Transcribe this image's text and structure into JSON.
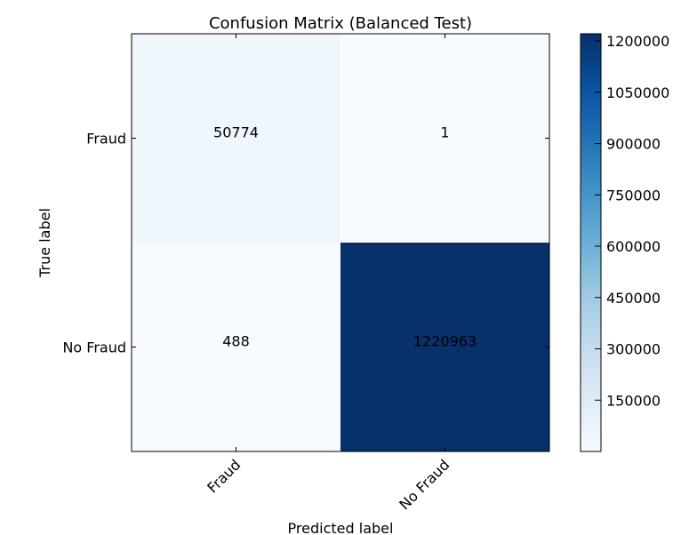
{
  "chart_data": {
    "type": "heatmap",
    "title": "Confusion Matrix (Balanced Test)",
    "xlabel": "Predicted label",
    "ylabel": "True label",
    "x_categories": [
      "Fraud",
      "No Fraud"
    ],
    "y_categories": [
      "Fraud",
      "No Fraud"
    ],
    "values": [
      [
        50774,
        1
      ],
      [
        488,
        1220963
      ]
    ],
    "value_labels": [
      [
        "50774",
        "1"
      ],
      [
        "488",
        "1220963"
      ]
    ],
    "colormap": "Blues",
    "color_range": [
      1,
      1220963
    ],
    "colorbar_ticks": [
      150000,
      300000,
      450000,
      600000,
      750000,
      900000,
      1050000,
      1200000
    ],
    "colorbar_tick_labels": [
      "150000",
      "300000",
      "450000",
      "600000",
      "750000",
      "900000",
      "1050000",
      "1200000"
    ],
    "text_color_light": "#ffffff",
    "text_color_dark": "#000000"
  }
}
